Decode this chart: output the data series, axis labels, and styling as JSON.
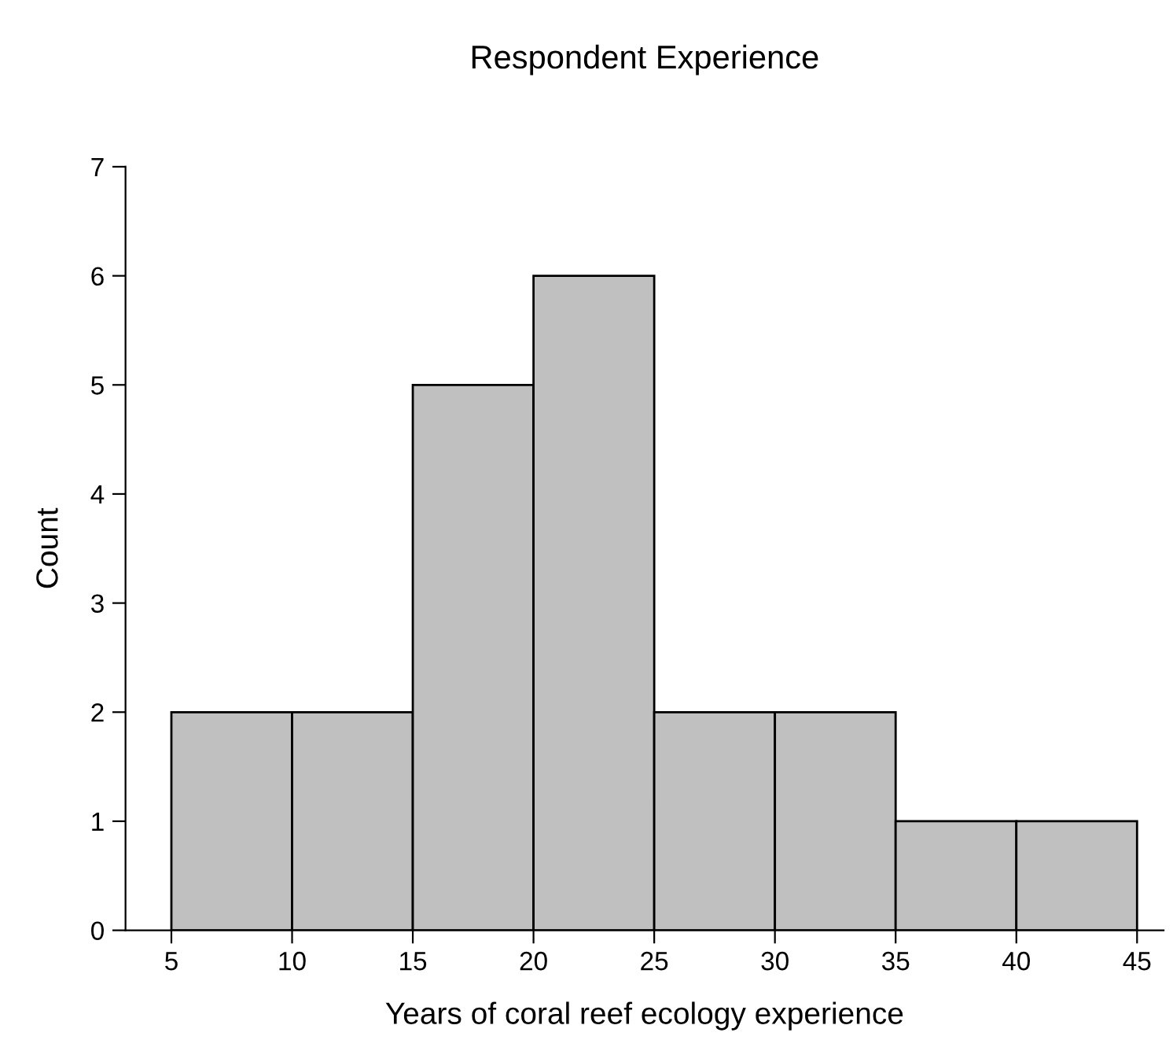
{
  "chart_data": {
    "type": "histogram",
    "title": "Respondent Experience",
    "xlabel": "Years of coral reef ecology experience",
    "ylabel": "Count",
    "bins": [
      5,
      10,
      15,
      20,
      25,
      30,
      35,
      40,
      45
    ],
    "values": [
      2,
      2,
      5,
      6,
      2,
      2,
      1,
      1
    ],
    "color": "#c0c0c0",
    "xlim": [
      3.1,
      46.1
    ],
    "xticks": [
      5,
      10,
      15,
      20,
      25,
      30,
      35,
      40,
      45
    ],
    "ylim": [
      0,
      7
    ],
    "yticks": [
      0,
      1,
      2,
      3,
      4,
      5,
      6,
      7
    ],
    "grid": false,
    "legend": false
  }
}
